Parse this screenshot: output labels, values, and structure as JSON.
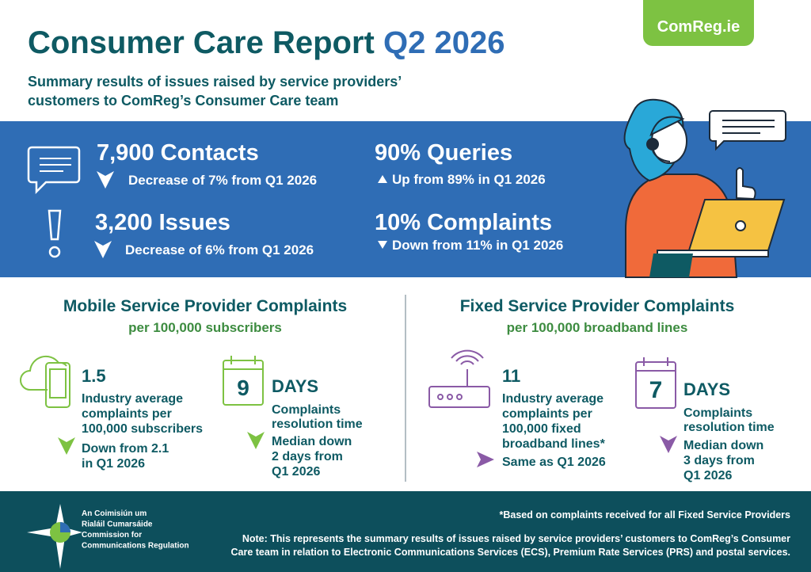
{
  "header": {
    "title": "Consumer Care Report",
    "title_period": "Q2 2026",
    "badge": "ComReg.ie",
    "subtitle_lines": [
      "Summary results of issues raised by service providers’",
      "customers to ComReg’s Consumer Care team"
    ]
  },
  "summary": {
    "contacts": {
      "headline": "7,900 Contacts",
      "change": "Decrease of 7% from Q1 2026"
    },
    "issues": {
      "headline": "3,200 Issues",
      "change": "Decrease of 6% from Q1 2026"
    },
    "queries": {
      "headline": "90% Queries",
      "change": "Up from 89% in Q1 2026"
    },
    "complaints": {
      "headline": "10% Complaints",
      "change": "Down from 11% in Q1 2026"
    }
  },
  "mobile": {
    "title": "Mobile Service Provider Complaints",
    "subtitle": "per 100,000 subscribers",
    "average": {
      "value": "1.5",
      "description_lines": [
        "Industry average",
        "complaints per",
        "100,000 subscribers"
      ],
      "change_lines": [
        "Down from 2.1",
        "in Q1 2026"
      ]
    },
    "resolution": {
      "days": "9",
      "unit": "DAYS",
      "description_lines": [
        "Complaints",
        "resolution time"
      ],
      "change_lines": [
        "Median down",
        "2 days from",
        "Q1 2026"
      ]
    }
  },
  "fixed": {
    "title": "Fixed Service Provider Complaints",
    "subtitle": "per 100,000 broadband lines",
    "average": {
      "value": "11",
      "description_lines": [
        "Industry average",
        "complaints per",
        "100,000 fixed",
        "broadband lines*"
      ],
      "change_lines": [
        "Same as Q1 2026"
      ]
    },
    "resolution": {
      "days": "7",
      "unit": "DAYS",
      "description_lines": [
        "Complaints",
        "resolution time"
      ],
      "change_lines": [
        "Median down",
        "3 days from",
        "Q1 2026"
      ]
    }
  },
  "footer": {
    "org_lines": [
      "An Coimisiún um",
      "Rialáil Cumarsáide",
      "Commission for",
      "Communications Regulation"
    ],
    "footnote": "*Based on complaints received for all Fixed Service Providers",
    "note_lines": [
      "Note: This represents the summary results of issues raised by service providers’ customers to ComReg’s Consumer",
      "Care team in relation to Electronic Communications Services (ECS), Premium Rate Services (PRS) and postal services."
    ]
  }
}
